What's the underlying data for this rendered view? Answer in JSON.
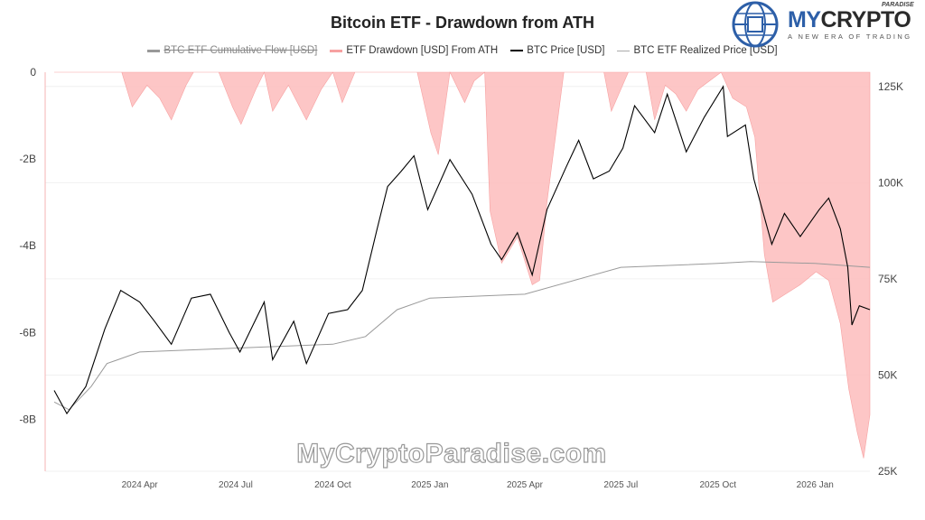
{
  "logo": {
    "brand_prefix": "MY",
    "brand_suffix": "CRYPTO",
    "over": "PARADISE",
    "tagline": "A NEW ERA OF TRADING",
    "icon": "globe-circuit-icon"
  },
  "watermark": "MyCryptoParadise.com",
  "chart_data": {
    "type": "line",
    "title": "Bitcoin ETF - Drawdown from ATH",
    "legend_placement": "top",
    "legend": [
      {
        "name": "BTC ETF Cumulative Flow [USD]",
        "color": "#777777",
        "hidden": true
      },
      {
        "name": "ETF Drawdown [USD] From ATH",
        "color": "#f7a1a1"
      },
      {
        "name": "BTC Price [USD]",
        "color": "#000000"
      },
      {
        "name": "BTC ETF Realized Price [USD]",
        "color": "#999999"
      }
    ],
    "xlim": [
      "2024-01-11",
      "2026-02-22"
    ],
    "x_ticks": [
      "2024 Apr",
      "2024 Jul",
      "2024 Oct",
      "2025 Jan",
      "2025 Apr",
      "2025 Jul",
      "2025 Oct",
      "2026 Jan"
    ],
    "x_tick_dates": [
      "2024-04-01",
      "2024-07-01",
      "2024-10-01",
      "2025-01-01",
      "2025-04-01",
      "2025-07-01",
      "2025-10-01",
      "2026-01-01"
    ],
    "y_left": {
      "ylim": [
        -9.2,
        0
      ],
      "unit": "B",
      "ticks": [
        "0",
        "-2B",
        "-4B",
        "-6B",
        "-8B"
      ],
      "tick_values": [
        0,
        -2,
        -4,
        -6,
        -8
      ]
    },
    "y_right": {
      "ylim": [
        25,
        128.7
      ],
      "unit": "K",
      "ticks": [
        "125K",
        "100K",
        "75K",
        "50K",
        "25K"
      ],
      "tick_values": [
        125,
        100,
        75,
        50,
        25
      ]
    },
    "grid": true,
    "series": [
      {
        "name": "ETF Drawdown [USD] From ATH",
        "axis": "left",
        "type": "area",
        "color": "#f7a1a1",
        "points": [
          [
            "2024-01-11",
            0
          ],
          [
            "2024-03-15",
            0
          ],
          [
            "2024-03-25",
            -0.8
          ],
          [
            "2024-04-08",
            -0.3
          ],
          [
            "2024-04-20",
            -0.6
          ],
          [
            "2024-05-01",
            -1.1
          ],
          [
            "2024-05-15",
            -0.3
          ],
          [
            "2024-05-22",
            0
          ],
          [
            "2024-06-15",
            0
          ],
          [
            "2024-06-28",
            -0.8
          ],
          [
            "2024-07-06",
            -1.2
          ],
          [
            "2024-07-20",
            -0.4
          ],
          [
            "2024-07-28",
            0
          ],
          [
            "2024-08-05",
            -0.9
          ],
          [
            "2024-08-20",
            -0.3
          ],
          [
            "2024-09-06",
            -1.1
          ],
          [
            "2024-09-20",
            -0.4
          ],
          [
            "2024-10-01",
            0
          ],
          [
            "2024-10-10",
            -0.7
          ],
          [
            "2024-10-22",
            0
          ],
          [
            "2024-12-20",
            0
          ],
          [
            "2025-01-02",
            -1.4
          ],
          [
            "2025-01-09",
            -1.9
          ],
          [
            "2025-01-20",
            0
          ],
          [
            "2025-02-03",
            -0.7
          ],
          [
            "2025-02-12",
            -0.2
          ],
          [
            "2025-02-22",
            0
          ],
          [
            "2025-02-27",
            -3.2
          ],
          [
            "2025-03-10",
            -4.4
          ],
          [
            "2025-03-25",
            -3.8
          ],
          [
            "2025-04-08",
            -4.9
          ],
          [
            "2025-04-15",
            -4.8
          ],
          [
            "2025-04-22",
            -3.0
          ],
          [
            "2025-05-08",
            0
          ],
          [
            "2025-06-15",
            0
          ],
          [
            "2025-06-22",
            -0.9
          ],
          [
            "2025-07-08",
            0
          ],
          [
            "2025-07-25",
            0
          ],
          [
            "2025-08-02",
            -1.1
          ],
          [
            "2025-08-12",
            -0.3
          ],
          [
            "2025-08-22",
            -0.5
          ],
          [
            "2025-09-01",
            -0.9
          ],
          [
            "2025-09-12",
            -0.4
          ],
          [
            "2025-10-04",
            0
          ],
          [
            "2025-10-15",
            -0.6
          ],
          [
            "2025-10-28",
            -0.8
          ],
          [
            "2025-11-05",
            -1.5
          ],
          [
            "2025-11-14",
            -4.2
          ],
          [
            "2025-11-22",
            -5.3
          ],
          [
            "2025-12-05",
            -5.1
          ],
          [
            "2025-12-18",
            -4.9
          ],
          [
            "2026-01-02",
            -4.6
          ],
          [
            "2026-01-14",
            -4.8
          ],
          [
            "2026-01-25",
            -5.8
          ],
          [
            "2026-02-02",
            -7.3
          ],
          [
            "2026-02-10",
            -8.3
          ],
          [
            "2026-02-16",
            -8.9
          ],
          [
            "2026-02-22",
            -7.9
          ]
        ]
      },
      {
        "name": "BTC Price [USD]",
        "axis": "right",
        "color": "#000000",
        "points": [
          [
            "2024-01-11",
            46
          ],
          [
            "2024-01-23",
            40
          ],
          [
            "2024-02-10",
            47
          ],
          [
            "2024-02-28",
            62
          ],
          [
            "2024-03-14",
            72
          ],
          [
            "2024-04-01",
            69
          ],
          [
            "2024-04-15",
            64
          ],
          [
            "2024-05-01",
            58
          ],
          [
            "2024-05-20",
            70
          ],
          [
            "2024-06-07",
            71
          ],
          [
            "2024-06-25",
            61
          ],
          [
            "2024-07-05",
            56
          ],
          [
            "2024-07-28",
            69
          ],
          [
            "2024-08-05",
            54
          ],
          [
            "2024-08-25",
            64
          ],
          [
            "2024-09-06",
            53
          ],
          [
            "2024-09-27",
            66
          ],
          [
            "2024-10-15",
            67
          ],
          [
            "2024-10-29",
            72
          ],
          [
            "2024-11-12",
            88
          ],
          [
            "2024-11-22",
            99
          ],
          [
            "2024-12-05",
            103
          ],
          [
            "2024-12-17",
            107
          ],
          [
            "2024-12-30",
            93
          ],
          [
            "2025-01-20",
            106
          ],
          [
            "2025-02-10",
            97
          ],
          [
            "2025-02-28",
            84
          ],
          [
            "2025-03-10",
            80
          ],
          [
            "2025-03-25",
            87
          ],
          [
            "2025-04-08",
            76
          ],
          [
            "2025-04-22",
            93
          ],
          [
            "2025-05-10",
            104
          ],
          [
            "2025-05-22",
            111
          ],
          [
            "2025-06-05",
            101
          ],
          [
            "2025-06-20",
            103
          ],
          [
            "2025-07-03",
            109
          ],
          [
            "2025-07-14",
            120
          ],
          [
            "2025-08-02",
            113
          ],
          [
            "2025-08-14",
            123
          ],
          [
            "2025-09-01",
            108
          ],
          [
            "2025-09-18",
            117
          ],
          [
            "2025-10-06",
            125
          ],
          [
            "2025-10-10",
            112
          ],
          [
            "2025-10-27",
            115
          ],
          [
            "2025-11-04",
            101
          ],
          [
            "2025-11-21",
            84
          ],
          [
            "2025-12-03",
            92
          ],
          [
            "2025-12-18",
            86
          ],
          [
            "2026-01-05",
            93
          ],
          [
            "2026-01-14",
            96
          ],
          [
            "2026-01-25",
            88
          ],
          [
            "2026-02-01",
            78
          ],
          [
            "2026-02-05",
            63
          ],
          [
            "2026-02-12",
            68
          ],
          [
            "2026-02-22",
            67
          ]
        ]
      },
      {
        "name": "BTC ETF Realized Price [USD]",
        "axis": "right",
        "color": "#999999",
        "points": [
          [
            "2024-01-11",
            43
          ],
          [
            "2024-01-25",
            41
          ],
          [
            "2024-02-15",
            47
          ],
          [
            "2024-03-01",
            53
          ],
          [
            "2024-04-01",
            56
          ],
          [
            "2024-07-01",
            57
          ],
          [
            "2024-10-01",
            58
          ],
          [
            "2024-11-01",
            60
          ],
          [
            "2024-12-01",
            67
          ],
          [
            "2025-01-01",
            70
          ],
          [
            "2025-04-01",
            71
          ],
          [
            "2025-07-01",
            78
          ],
          [
            "2025-10-01",
            79
          ],
          [
            "2025-11-01",
            79.5
          ],
          [
            "2026-01-01",
            79
          ],
          [
            "2026-02-22",
            78
          ]
        ]
      }
    ]
  }
}
